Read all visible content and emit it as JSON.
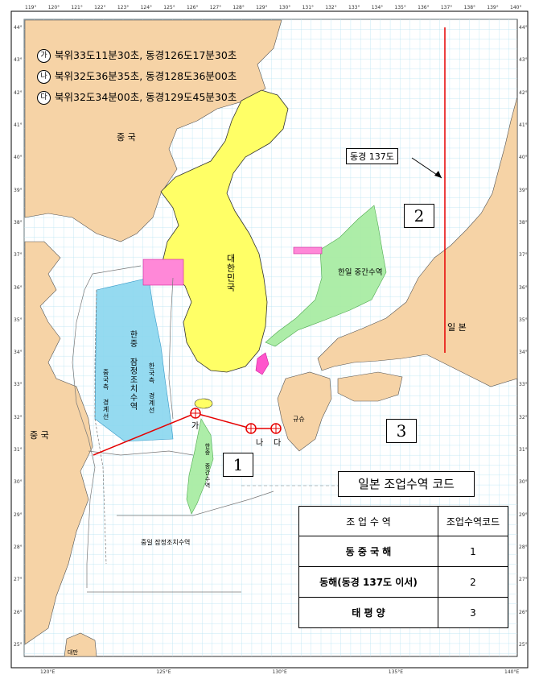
{
  "coordinates": [
    {
      "marker": "가",
      "text": "북위33도11분30초, 동경126도17분30초"
    },
    {
      "marker": "나",
      "text": "북위32도36분35초, 동경128도36분00초"
    },
    {
      "marker": "다",
      "text": "북위32도34분00초, 동경129도45분30초"
    }
  ],
  "points": {
    "a": "가",
    "b": "나",
    "c": "다"
  },
  "labels": {
    "china_north": "중 국",
    "china_south": "중 국",
    "korea": "대한민국",
    "japan": "일 본",
    "taiwan": "대만",
    "kyushu": "규슈",
    "korea_japan_middle": "한일 중간수역",
    "korea_china_pmz": "한중 잠정조치수역",
    "korea_china_middle": "한중 중간수역",
    "china_jpn_pmz": "중일 잠정조치수역",
    "china_line_west": "중국측 경계선",
    "korea_line": "한국측 경계선",
    "east137": "동경 137도"
  },
  "zones": {
    "zone1": "1",
    "zone2": "2",
    "zone3": "3"
  },
  "legend": {
    "title": "일본 조업수역 코드",
    "headers": [
      "조 업 수 역",
      "조업수역코드"
    ],
    "rows": [
      {
        "name": "동 중 국 해",
        "code": "1"
      },
      {
        "name": "동해(동경 137도 이서)",
        "code": "2"
      },
      {
        "name": "태 평 양",
        "code": "3"
      }
    ]
  },
  "lon_ticks": [
    "119°",
    "120°",
    "121°",
    "122°",
    "123°",
    "124°",
    "125°",
    "126°",
    "127°",
    "128°",
    "129°",
    "130°",
    "131°",
    "132°",
    "133°",
    "134°",
    "135°",
    "136°",
    "137°",
    "138°",
    "139°",
    "140°"
  ],
  "lon_ticks_bottom": [
    "120°E",
    "125°E",
    "130°E",
    "135°E",
    "140°E"
  ],
  "lat_ticks": [
    "44°",
    "43°",
    "42°",
    "41°",
    "40°",
    "39°",
    "38°",
    "37°",
    "36°",
    "35°",
    "34°",
    "33°",
    "32°",
    "31°",
    "30°",
    "29°",
    "28°",
    "27°",
    "26°",
    "25°"
  ],
  "colors": {
    "sea": "#ffffff",
    "land": "#f6d3a6",
    "korea": "#ffff66",
    "pmz": "#8ad7ef",
    "middle": "#a9eda4",
    "red": "#e60000",
    "grid": "#b9e3f2"
  }
}
